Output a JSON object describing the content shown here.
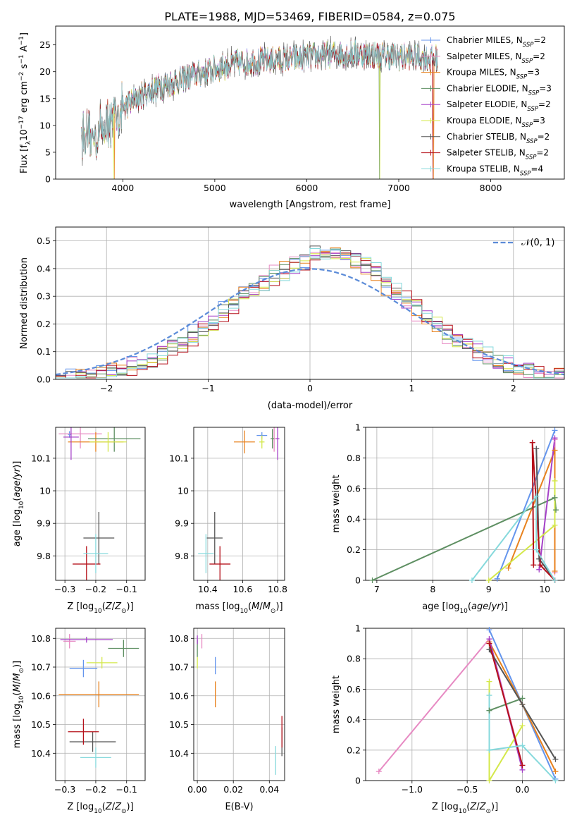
{
  "figure_title": "PLATE=1988, MJD=53469, FIBERID=0584, z=0.075",
  "colors": {
    "Chabrier MILES": "#6495ed",
    "Salpeter MILES": "#e78ac3",
    "Kroupa MILES": "#e8821e",
    "Chabrier ELODIE": "#5e8f62",
    "Salpeter ELODIE": "#a541c8",
    "Kroupa ELODIE": "#d4e84a",
    "Chabrier STELIB": "#555555",
    "Salpeter STELIB": "#b5101a",
    "Kroupa STELIB": "#86d9dc",
    "normal": "#5b8bd8"
  },
  "chart_data": [
    {
      "id": "spectrum",
      "type": "line",
      "xlabel": "wavelength [Angstrom, rest frame]",
      "ylabel": "Flux [f_λ10^-17 erg cm^-2 s^-1 A^-1]",
      "xlim": [
        3270,
        8800
      ],
      "ylim": [
        0,
        28.5
      ],
      "xticks": [
        4000,
        5000,
        6000,
        7000,
        8000
      ],
      "yticks": [
        0,
        5,
        10,
        15,
        20,
        25
      ],
      "legend_position": "upper-right",
      "series": [
        {
          "name": "Chabrier MILES, N_SSP=2",
          "name_main": "Chabrier MILES, N",
          "name_sub": "SSP",
          "name_tail": "=2"
        },
        {
          "name": "Salpeter MILES, N_SSP=2",
          "name_main": "Salpeter MILES, N",
          "name_sub": "SSP",
          "name_tail": "=2"
        },
        {
          "name": "Kroupa MILES, N_SSP=3",
          "name_main": "Kroupa MILES, N",
          "name_sub": "SSP",
          "name_tail": "=3"
        },
        {
          "name": "Chabrier ELODIE, N_SSP=3",
          "name_main": "Chabrier ELODIE, N",
          "name_sub": "SSP",
          "name_tail": "=3"
        },
        {
          "name": "Salpeter ELODIE, N_SSP=2",
          "name_main": "Salpeter ELODIE, N",
          "name_sub": "SSP",
          "name_tail": "=2"
        },
        {
          "name": "Kroupa ELODIE, N_SSP=3",
          "name_main": "Kroupa ELODIE, N",
          "name_sub": "SSP",
          "name_tail": "=3"
        },
        {
          "name": "Chabrier STELIB, N_SSP=2",
          "name_main": "Chabrier STELIB, N",
          "name_sub": "SSP",
          "name_tail": "=2"
        },
        {
          "name": "Salpeter STELIB, N_SSP=2",
          "name_main": "Salpeter STELIB, N",
          "name_sub": "SSP",
          "name_tail": "=2"
        },
        {
          "name": "Kroupa STELIB, N_SSP=4",
          "name_main": "Kroupa STELIB, N",
          "name_sub": "SSP",
          "name_tail": "=4"
        }
      ],
      "continuum": [
        [
          3550,
          9
        ],
        [
          3650,
          7.5
        ],
        [
          3750,
          9
        ],
        [
          3850,
          10.5
        ],
        [
          3950,
          12.5
        ],
        [
          4100,
          14.5
        ],
        [
          4300,
          16.5
        ],
        [
          4500,
          17.8
        ],
        [
          4800,
          19.5
        ],
        [
          5000,
          20.5
        ],
        [
          5200,
          21.5
        ],
        [
          5500,
          22
        ],
        [
          5800,
          22.3
        ],
        [
          6000,
          22.7
        ],
        [
          6300,
          23.3
        ],
        [
          6600,
          23.3
        ],
        [
          7000,
          22.8
        ],
        [
          7400,
          22.5
        ]
      ],
      "dips": [
        {
          "series": 5,
          "x": 3900,
          "y": 0
        },
        {
          "series": 2,
          "x": 3910,
          "y": 0
        },
        {
          "series": 3,
          "x": 6790,
          "y": 0
        },
        {
          "series": 5,
          "x": 6795,
          "y": 0
        },
        {
          "series": 7,
          "x": 7370,
          "y": 0
        },
        {
          "series": 2,
          "x": 7380,
          "y": 0
        }
      ]
    },
    {
      "id": "residuals",
      "type": "step-histogram",
      "xlabel": "(data-model)/error",
      "ylabel": "Normed distribution",
      "xlim": [
        -2.5,
        2.5
      ],
      "ylim": [
        0,
        0.55
      ],
      "xticks": [
        -2,
        -1,
        0,
        1,
        2
      ],
      "yticks": [
        0.0,
        0.1,
        0.2,
        0.3,
        0.4,
        0.5
      ],
      "ytick_labels": [
        "0.0",
        "0.1",
        "0.2",
        "0.3",
        "0.4",
        "0.5"
      ],
      "bin_width": 0.1,
      "grid": true,
      "legend_position": "upper-right",
      "normal_label": "𝒩(0, 1)"
    },
    {
      "id": "age_vs_Z",
      "type": "errorbar",
      "xlabel": "Z [log10(Z/Z⊙)]",
      "ylabel": "age [log10(age/yr)]",
      "xlim": [
        -0.33,
        -0.04
      ],
      "ylim": [
        9.725,
        10.195
      ],
      "xticks": [
        -0.3,
        -0.2,
        -0.1
      ],
      "yticks": [
        9.8,
        9.9,
        10.0,
        10.1
      ],
      "points": [
        {
          "series": 0,
          "x": -0.285,
          "xerr": 0.005,
          "y": 10.173,
          "yerr": 0.01
        },
        {
          "series": 1,
          "x": -0.25,
          "xerr": 0.07,
          "y": 10.175,
          "yerr": 0.045
        },
        {
          "series": 2,
          "x": -0.2,
          "xerr": 0.09,
          "y": 10.15,
          "yerr": 0.03
        },
        {
          "series": 3,
          "x": -0.14,
          "xerr": 0.085,
          "y": 10.16,
          "yerr": 0.04
        },
        {
          "series": 4,
          "x": -0.28,
          "xerr": 0.025,
          "y": 10.165,
          "yerr": 0.07
        },
        {
          "series": 5,
          "x": -0.16,
          "xerr": 0.06,
          "y": 10.15,
          "yerr": 0.03
        },
        {
          "series": 6,
          "x": -0.19,
          "xerr": 0.05,
          "y": 9.855,
          "yerr": 0.08
        },
        {
          "series": 7,
          "x": -0.23,
          "xerr": 0.045,
          "y": 9.775,
          "yerr": 0.055
        },
        {
          "series": 8,
          "x": -0.2,
          "xerr": 0.04,
          "y": 9.807,
          "yerr": 0.06
        }
      ]
    },
    {
      "id": "age_vs_mass",
      "type": "errorbar",
      "xlabel": "mass [log10(M/M⊙)]",
      "ylabel": "",
      "xlim": [
        10.32,
        10.84
      ],
      "ylim": [
        9.725,
        10.195
      ],
      "xticks": [
        10.4,
        10.6,
        10.8
      ],
      "yticks": [
        9.8,
        9.9,
        10.0,
        10.1
      ],
      "points": [
        {
          "series": 0,
          "x": 10.71,
          "xerr": 0.03,
          "y": 10.17,
          "yerr": 0.01
        },
        {
          "series": 1,
          "x": 10.78,
          "xerr": 0.02,
          "y": 10.16,
          "yerr": 0.04
        },
        {
          "series": 2,
          "x": 10.61,
          "xerr": 0.06,
          "y": 10.15,
          "yerr": 0.035
        },
        {
          "series": 3,
          "x": 10.77,
          "xerr": 0.01,
          "y": 10.16,
          "yerr": 0.03
        },
        {
          "series": 4,
          "x": 10.8,
          "xerr": 0.01,
          "y": 10.16,
          "yerr": 0.065
        },
        {
          "series": 5,
          "x": 10.71,
          "xerr": 0.015,
          "y": 10.15,
          "yerr": 0.02
        },
        {
          "series": 6,
          "x": 10.44,
          "xerr": 0.045,
          "y": 9.855,
          "yerr": 0.08
        },
        {
          "series": 7,
          "x": 10.47,
          "xerr": 0.06,
          "y": 9.775,
          "yerr": 0.055
        },
        {
          "series": 8,
          "x": 10.39,
          "xerr": 0.045,
          "y": 9.807,
          "yerr": 0.06
        }
      ]
    },
    {
      "id": "weight_vs_age",
      "type": "line",
      "xlabel": "age [log10(age/yr)]",
      "ylabel": "mass weight",
      "xlim": [
        6.8,
        10.35
      ],
      "ylim": [
        0,
        1
      ],
      "xticks": [
        7,
        8,
        9,
        10
      ],
      "yticks": [
        0.0,
        0.2,
        0.4,
        0.6,
        0.8,
        1.0
      ],
      "series": [
        {
          "series": 0,
          "x": [
            9.15,
            10.18
          ],
          "y": [
            0.01,
            0.98
          ]
        },
        {
          "series": 1,
          "x": [
            10.18,
            10.18
          ],
          "y": [
            0.05,
            0.92
          ]
        },
        {
          "series": 2,
          "x": [
            9.35,
            10.18,
            10.18
          ],
          "y": [
            0.08,
            0.85,
            0.06
          ]
        },
        {
          "series": 3,
          "x": [
            6.92,
            10.18,
            10.2
          ],
          "y": [
            0.0,
            0.54,
            0.46
          ]
        },
        {
          "series": 4,
          "x": [
            9.9,
            10.18
          ],
          "y": [
            0.07,
            0.93
          ]
        },
        {
          "series": 5,
          "x": [
            9.0,
            10.18,
            10.18
          ],
          "y": [
            0.0,
            0.36,
            0.65
          ]
        },
        {
          "series": 6,
          "x": [
            9.9,
            9.85,
            9.9,
            10.18
          ],
          "y": [
            0.14,
            0.86,
            0.14,
            0.0
          ]
        },
        {
          "series": 7,
          "x": [
            9.8,
            9.78,
            9.92,
            10.18
          ],
          "y": [
            0.1,
            0.9,
            0.1,
            0.0
          ]
        },
        {
          "series": 8,
          "x": [
            8.7,
            9.85,
            9.85,
            10.18
          ],
          "y": [
            0.0,
            0.55,
            0.2,
            0.0
          ]
        }
      ]
    },
    {
      "id": "mass_vs_Z",
      "type": "errorbar",
      "xlabel": "Z [log10(Z/Z⊙)]",
      "ylabel": "mass [log10(M/M⊙)]",
      "xlim": [
        -0.33,
        -0.04
      ],
      "ylim": [
        10.305,
        10.835
      ],
      "xticks": [
        -0.3,
        -0.2,
        -0.1
      ],
      "yticks": [
        10.4,
        10.5,
        10.6,
        10.7,
        10.8
      ],
      "points": [
        {
          "series": 0,
          "x": -0.24,
          "xerr": 0.045,
          "y": 10.695,
          "yerr": 0.03
        },
        {
          "series": 1,
          "x": -0.285,
          "xerr": 0.02,
          "y": 10.79,
          "yerr": 0.025
        },
        {
          "series": 2,
          "x": -0.19,
          "xerr": 0.13,
          "y": 10.605,
          "yerr": 0.045
        },
        {
          "series": 3,
          "x": -0.11,
          "xerr": 0.05,
          "y": 10.765,
          "yerr": 0.03
        },
        {
          "series": 4,
          "x": -0.23,
          "xerr": 0.085,
          "y": 10.795,
          "yerr": 0.01
        },
        {
          "series": 5,
          "x": -0.18,
          "xerr": 0.05,
          "y": 10.715,
          "yerr": 0.02
        },
        {
          "series": 6,
          "x": -0.21,
          "xerr": 0.075,
          "y": 10.44,
          "yerr": 0.035
        },
        {
          "series": 7,
          "x": -0.24,
          "xerr": 0.05,
          "y": 10.475,
          "yerr": 0.045
        },
        {
          "series": 8,
          "x": -0.2,
          "xerr": 0.05,
          "y": 10.385,
          "yerr": 0.035
        }
      ]
    },
    {
      "id": "mass_vs_EBV",
      "type": "errorbar",
      "xlabel": "E(B-V)",
      "ylabel": "",
      "xlim": [
        -0.002,
        0.0485
      ],
      "ylim": [
        10.305,
        10.835
      ],
      "xticks": [
        0.0,
        0.02,
        0.04
      ],
      "xtick_labels": [
        "0.00",
        "0.02",
        "0.04"
      ],
      "yticks": [
        10.4,
        10.5,
        10.6,
        10.7,
        10.8
      ],
      "points": [
        {
          "series": 0,
          "x": 0.01,
          "xerr": 0.0,
          "y": 10.705,
          "yerr": 0.03
        },
        {
          "series": 1,
          "x": 0.0025,
          "xerr": 0.0,
          "y": 10.79,
          "yerr": 0.025
        },
        {
          "series": 2,
          "x": 0.01,
          "xerr": 0.0,
          "y": 10.605,
          "yerr": 0.045
        },
        {
          "series": 3,
          "x": 0.0,
          "xerr": 0.0,
          "y": 10.765,
          "yerr": 0.03
        },
        {
          "series": 4,
          "x": 0.0,
          "xerr": 0.0,
          "y": 10.795,
          "yerr": 0.015
        },
        {
          "series": 5,
          "x": 0.0,
          "xerr": 0.0,
          "y": 10.715,
          "yerr": 0.02
        },
        {
          "series": 6,
          "x": 0.047,
          "xerr": 0.0,
          "y": 10.44,
          "yerr": 0.05
        },
        {
          "series": 7,
          "x": 0.047,
          "xerr": 0.0,
          "y": 10.475,
          "yerr": 0.055
        },
        {
          "series": 8,
          "x": 0.0435,
          "xerr": 0.0,
          "y": 10.375,
          "yerr": 0.05
        }
      ]
    },
    {
      "id": "weight_vs_Z",
      "type": "line",
      "xlabel": "Z [log10(Z/Z⊙)]",
      "ylabel": "mass weight",
      "xlim": [
        -1.42,
        0.38
      ],
      "ylim": [
        0,
        1
      ],
      "xticks": [
        -1.0,
        -0.5,
        0.0
      ],
      "xtick_labels": [
        "−1.0",
        "−0.5",
        "0.0"
      ],
      "yticks": [
        0.0,
        0.2,
        0.4,
        0.6,
        0.8,
        1.0
      ],
      "series": [
        {
          "series": 0,
          "x": [
            -0.3,
            0.3
          ],
          "y": [
            0.99,
            0.01
          ]
        },
        {
          "series": 1,
          "x": [
            -1.3,
            -0.3,
            0.0
          ],
          "y": [
            0.06,
            0.93,
            0.1
          ]
        },
        {
          "series": 2,
          "x": [
            -0.3,
            0.0,
            0.3
          ],
          "y": [
            0.91,
            0.5,
            0.06
          ]
        },
        {
          "series": 3,
          "x": [
            -0.3,
            0.0,
            -0.3
          ],
          "y": [
            0.46,
            0.54,
            0.46
          ]
        },
        {
          "series": 4,
          "x": [
            -0.3,
            0.0
          ],
          "y": [
            0.93,
            0.07
          ]
        },
        {
          "series": 5,
          "x": [
            -0.3,
            -0.3,
            0.0
          ],
          "y": [
            0.65,
            0.0,
            0.36
          ]
        },
        {
          "series": 6,
          "x": [
            -0.3,
            0.0,
            0.3
          ],
          "y": [
            0.86,
            0.5,
            0.14
          ]
        },
        {
          "series": 7,
          "x": [
            -0.3,
            0.0
          ],
          "y": [
            0.9,
            0.1
          ]
        },
        {
          "series": 8,
          "x": [
            -0.3,
            -0.3,
            0.0,
            0.3
          ],
          "y": [
            0.56,
            0.2,
            0.23,
            0.0
          ]
        }
      ]
    }
  ]
}
